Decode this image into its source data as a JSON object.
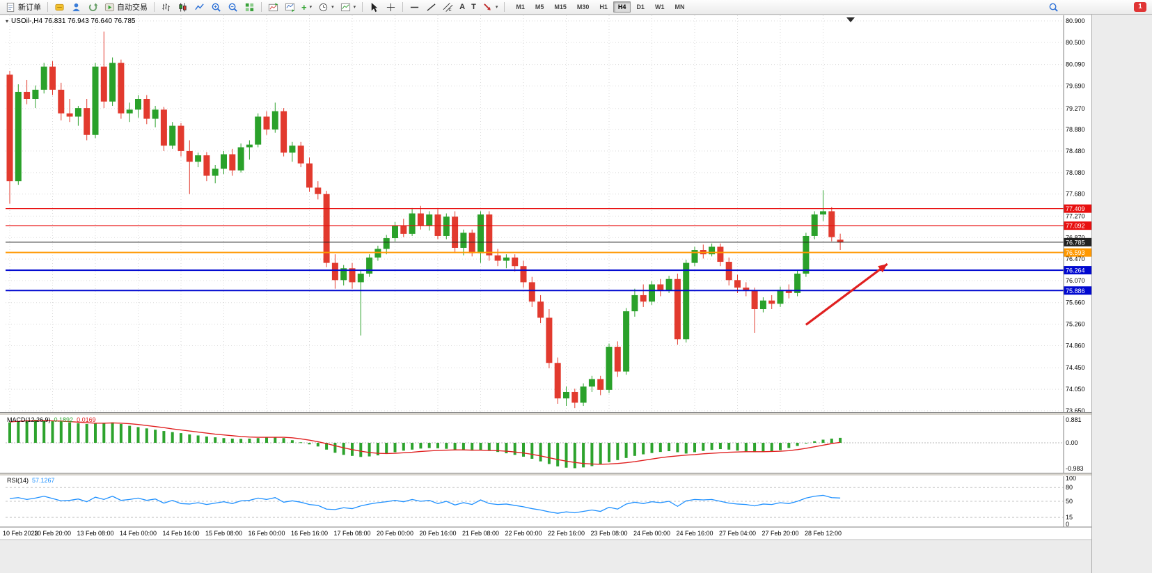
{
  "toolbar": {
    "new_order": "新订单",
    "auto_trading": "自动交易",
    "timeframes": [
      "M1",
      "M5",
      "M15",
      "M30",
      "H1",
      "H4",
      "D1",
      "W1",
      "MN"
    ],
    "active_timeframe": "H4",
    "badge": "1"
  },
  "chart": {
    "title": "USOil-,H4 76.831 76.943 76.640 76.785",
    "symbol": "USOil-",
    "period": "H4",
    "ohlc_current": {
      "open": "76.831",
      "high": "76.943",
      "low": "76.640",
      "close": "76.785"
    }
  },
  "macd": {
    "name": "MACD(12,26,9)",
    "value_main": "0.1892",
    "value_signal": "0.0169",
    "axis": [
      "0.881",
      "0.00",
      "-0.983"
    ]
  },
  "rsi": {
    "name": "RSI(14)",
    "value": "57.1267",
    "axis": [
      "100",
      "80",
      "50",
      "15",
      "0"
    ]
  },
  "chart_data": {
    "type": "candlestick",
    "title": "USOil- H4",
    "price_axis_ticks": [
      "80.900",
      "80.500",
      "80.090",
      "79.690",
      "79.270",
      "78.880",
      "78.480",
      "78.080",
      "77.680",
      "77.270",
      "76.870",
      "76.470",
      "76.070",
      "75.660",
      "75.260",
      "74.860",
      "74.450",
      "74.050",
      "73.650"
    ],
    "time_labels": [
      "10 Feb 2023",
      "10 Feb 20:00",
      "13 Feb 08:00",
      "14 Feb 00:00",
      "14 Feb 16:00",
      "15 Feb 08:00",
      "16 Feb 00:00",
      "16 Feb 16:00",
      "17 Feb 08:00",
      "20 Feb 00:00",
      "20 Feb 16:00",
      "21 Feb 08:00",
      "22 Feb 00:00",
      "22 Feb 16:00",
      "23 Feb 08:00",
      "24 Feb 00:00",
      "24 Feb 16:00",
      "27 Feb 04:00",
      "27 Feb 20:00",
      "28 Feb 12:00"
    ],
    "bars_per_label": 5,
    "ohlc": [
      [
        79.9,
        79.97,
        77.5,
        77.92
      ],
      [
        77.92,
        79.72,
        77.85,
        79.58
      ],
      [
        79.58,
        79.8,
        79.35,
        79.45
      ],
      [
        79.45,
        79.7,
        79.28,
        79.62
      ],
      [
        79.62,
        80.12,
        79.55,
        80.05
      ],
      [
        80.05,
        80.15,
        79.52,
        79.62
      ],
      [
        79.62,
        79.75,
        79.05,
        79.18
      ],
      [
        79.18,
        79.45,
        79.02,
        79.12
      ],
      [
        79.12,
        79.32,
        78.95,
        79.28
      ],
      [
        79.28,
        79.45,
        78.68,
        78.78
      ],
      [
        78.78,
        80.12,
        78.72,
        80.05
      ],
      [
        80.05,
        80.7,
        79.28,
        79.4
      ],
      [
        79.4,
        80.22,
        79.32,
        80.12
      ],
      [
        80.12,
        80.18,
        79.08,
        79.18
      ],
      [
        79.18,
        79.38,
        79.02,
        79.25
      ],
      [
        79.25,
        79.52,
        79.1,
        79.45
      ],
      [
        79.45,
        79.52,
        78.98,
        79.08
      ],
      [
        79.08,
        79.32,
        78.92,
        79.25
      ],
      [
        79.25,
        79.3,
        78.48,
        78.58
      ],
      [
        78.58,
        79.02,
        78.52,
        78.95
      ],
      [
        78.95,
        79.0,
        78.38,
        78.48
      ],
      [
        78.48,
        78.68,
        77.68,
        78.28
      ],
      [
        78.28,
        78.45,
        78.18,
        78.4
      ],
      [
        78.4,
        78.46,
        77.92,
        78.02
      ],
      [
        78.02,
        78.22,
        77.88,
        78.15
      ],
      [
        78.15,
        78.48,
        78.05,
        78.42
      ],
      [
        78.42,
        78.52,
        78.02,
        78.12
      ],
      [
        78.12,
        78.62,
        78.08,
        78.55
      ],
      [
        78.55,
        78.68,
        78.32,
        78.6
      ],
      [
        78.6,
        79.18,
        78.55,
        79.12
      ],
      [
        79.12,
        79.22,
        78.78,
        78.88
      ],
      [
        78.88,
        79.38,
        78.82,
        79.22
      ],
      [
        79.22,
        79.28,
        78.38,
        78.45
      ],
      [
        78.45,
        78.65,
        78.28,
        78.58
      ],
      [
        78.58,
        78.65,
        78.18,
        78.25
      ],
      [
        78.25,
        78.36,
        77.72,
        77.8
      ],
      [
        77.8,
        77.92,
        77.58,
        77.68
      ],
      [
        77.68,
        77.74,
        76.32,
        76.4
      ],
      [
        76.4,
        76.56,
        75.92,
        76.08
      ],
      [
        76.08,
        76.36,
        75.98,
        76.3
      ],
      [
        76.3,
        76.4,
        75.92,
        76.04
      ],
      [
        76.04,
        76.26,
        75.05,
        76.2
      ],
      [
        76.2,
        76.56,
        76.14,
        76.5
      ],
      [
        76.5,
        76.72,
        76.44,
        76.66
      ],
      [
        76.66,
        76.92,
        76.56,
        76.86
      ],
      [
        76.86,
        77.16,
        76.8,
        77.1
      ],
      [
        77.1,
        77.22,
        76.88,
        76.94
      ],
      [
        76.94,
        77.42,
        76.9,
        77.32
      ],
      [
        77.32,
        77.46,
        77.02,
        77.1
      ],
      [
        77.1,
        77.36,
        77.0,
        77.3
      ],
      [
        77.3,
        77.4,
        76.84,
        76.9
      ],
      [
        76.9,
        77.32,
        76.84,
        77.26
      ],
      [
        77.26,
        77.36,
        76.58,
        76.68
      ],
      [
        76.68,
        77.02,
        76.54,
        76.96
      ],
      [
        76.96,
        77.02,
        76.52,
        76.58
      ],
      [
        76.58,
        77.36,
        76.4,
        77.3
      ],
      [
        77.3,
        77.36,
        76.44,
        76.54
      ],
      [
        76.54,
        76.66,
        76.34,
        76.44
      ],
      [
        76.44,
        76.56,
        76.3,
        76.5
      ],
      [
        76.5,
        76.56,
        76.24,
        76.34
      ],
      [
        76.34,
        76.44,
        75.94,
        76.04
      ],
      [
        76.04,
        76.14,
        75.58,
        75.68
      ],
      [
        75.68,
        75.8,
        75.28,
        75.38
      ],
      [
        75.38,
        75.54,
        74.44,
        74.54
      ],
      [
        74.54,
        74.64,
        73.78,
        73.88
      ],
      [
        73.88,
        74.1,
        73.74,
        74.0
      ],
      [
        74.0,
        74.06,
        73.7,
        73.8
      ],
      [
        73.8,
        74.16,
        73.74,
        74.1
      ],
      [
        74.1,
        74.3,
        74.0,
        74.24
      ],
      [
        74.24,
        74.3,
        73.94,
        74.04
      ],
      [
        74.04,
        74.9,
        73.98,
        74.84
      ],
      [
        74.84,
        74.94,
        74.28,
        74.38
      ],
      [
        74.38,
        75.56,
        74.32,
        75.5
      ],
      [
        75.5,
        75.92,
        75.4,
        75.8
      ],
      [
        75.8,
        76.0,
        75.58,
        75.68
      ],
      [
        75.68,
        76.06,
        75.62,
        76.0
      ],
      [
        76.0,
        76.1,
        75.78,
        75.88
      ],
      [
        75.88,
        76.16,
        75.84,
        76.1
      ],
      [
        76.1,
        76.2,
        74.88,
        74.98
      ],
      [
        74.98,
        76.46,
        74.92,
        76.4
      ],
      [
        76.4,
        76.7,
        76.34,
        76.64
      ],
      [
        76.64,
        76.74,
        76.48,
        76.56
      ],
      [
        76.56,
        76.76,
        76.52,
        76.7
      ],
      [
        76.7,
        76.76,
        76.34,
        76.42
      ],
      [
        76.42,
        76.5,
        75.98,
        76.08
      ],
      [
        76.08,
        76.18,
        75.84,
        75.94
      ],
      [
        75.94,
        76.04,
        75.78,
        75.88
      ],
      [
        75.88,
        75.94,
        75.1,
        75.54
      ],
      [
        75.54,
        75.76,
        75.48,
        75.7
      ],
      [
        75.7,
        75.8,
        75.54,
        75.64
      ],
      [
        75.64,
        75.96,
        75.58,
        75.9
      ],
      [
        75.9,
        76.0,
        75.74,
        75.84
      ],
      [
        75.84,
        76.26,
        75.78,
        76.2
      ],
      [
        76.2,
        76.96,
        76.14,
        76.9
      ],
      [
        76.9,
        77.36,
        76.84,
        77.3
      ],
      [
        77.3,
        77.75,
        77.18,
        77.36
      ],
      [
        77.36,
        77.44,
        76.8,
        76.88
      ],
      [
        76.831,
        76.943,
        76.64,
        76.785
      ]
    ],
    "levels": [
      {
        "price": 77.409,
        "label": "77.409",
        "color": "#e81010",
        "width": 1.2
      },
      {
        "price": 77.092,
        "label": "77.092",
        "color": "#e81010",
        "width": 1.2
      },
      {
        "price": 76.785,
        "label": "76.785",
        "color": "#222222",
        "width": 1
      },
      {
        "price": 76.593,
        "label": "76.593",
        "color": "#ff9800",
        "width": 2
      },
      {
        "price": 76.264,
        "label": "76.264",
        "color": "#0008d0",
        "width": 2
      },
      {
        "price": 75.886,
        "label": "75.886",
        "color": "#0008d0",
        "width": 2
      }
    ],
    "arrow": {
      "from_bar": 93,
      "from_price": 75.25,
      "to_bar": 102.5,
      "to_price": 76.38,
      "color": "#e02020"
    },
    "macd": {
      "ylim": [
        -0.983,
        0.881
      ],
      "histogram": [
        0.78,
        0.82,
        0.86,
        0.88,
        0.86,
        0.83,
        0.8,
        0.78,
        0.75,
        0.72,
        0.73,
        0.76,
        0.78,
        0.72,
        0.65,
        0.6,
        0.55,
        0.5,
        0.45,
        0.41,
        0.37,
        0.32,
        0.28,
        0.24,
        0.21,
        0.18,
        0.16,
        0.15,
        0.16,
        0.18,
        0.2,
        0.22,
        0.18,
        0.1,
        0.02,
        -0.06,
        -0.14,
        -0.26,
        -0.38,
        -0.46,
        -0.5,
        -0.54,
        -0.52,
        -0.48,
        -0.42,
        -0.36,
        -0.3,
        -0.26,
        -0.22,
        -0.2,
        -0.21,
        -0.23,
        -0.26,
        -0.28,
        -0.3,
        -0.28,
        -0.31,
        -0.35,
        -0.4,
        -0.46,
        -0.53,
        -0.61,
        -0.71,
        -0.81,
        -0.9,
        -0.95,
        -0.97,
        -0.94,
        -0.89,
        -0.83,
        -0.74,
        -0.66,
        -0.58,
        -0.5,
        -0.44,
        -0.39,
        -0.35,
        -0.32,
        -0.36,
        -0.41,
        -0.36,
        -0.31,
        -0.27,
        -0.24,
        -0.26,
        -0.3,
        -0.33,
        -0.36,
        -0.35,
        -0.32,
        -0.28,
        -0.2,
        -0.12,
        -0.02,
        0.06,
        0.12,
        0.16,
        0.1892
      ],
      "signal": [
        0.8,
        0.82,
        0.84,
        0.85,
        0.85,
        0.84,
        0.83,
        0.81,
        0.79,
        0.77,
        0.75,
        0.75,
        0.76,
        0.75,
        0.73,
        0.7,
        0.66,
        0.62,
        0.58,
        0.53,
        0.49,
        0.45,
        0.41,
        0.37,
        0.33,
        0.3,
        0.27,
        0.24,
        0.22,
        0.21,
        0.21,
        0.21,
        0.21,
        0.19,
        0.15,
        0.1,
        0.04,
        -0.03,
        -0.11,
        -0.19,
        -0.26,
        -0.32,
        -0.37,
        -0.4,
        -0.41,
        -0.4,
        -0.38,
        -0.36,
        -0.33,
        -0.31,
        -0.29,
        -0.28,
        -0.27,
        -0.27,
        -0.28,
        -0.28,
        -0.29,
        -0.3,
        -0.32,
        -0.35,
        -0.39,
        -0.44,
        -0.5,
        -0.57,
        -0.64,
        -0.7,
        -0.75,
        -0.79,
        -0.81,
        -0.82,
        -0.81,
        -0.79,
        -0.76,
        -0.72,
        -0.67,
        -0.62,
        -0.57,
        -0.53,
        -0.5,
        -0.47,
        -0.45,
        -0.42,
        -0.4,
        -0.38,
        -0.36,
        -0.35,
        -0.34,
        -0.34,
        -0.34,
        -0.33,
        -0.32,
        -0.3,
        -0.26,
        -0.21,
        -0.15,
        -0.09,
        -0.03,
        0.0169
      ]
    },
    "rsi": {
      "ylim": [
        0,
        100
      ],
      "levels": [
        80,
        50,
        15
      ],
      "values": [
        56,
        58,
        54,
        57,
        61,
        56,
        51,
        52,
        55,
        49,
        59,
        54,
        61,
        52,
        54,
        57,
        52,
        55,
        46,
        52,
        45,
        44,
        47,
        43,
        46,
        49,
        45,
        51,
        52,
        57,
        54,
        58,
        48,
        51,
        48,
        43,
        41,
        33,
        32,
        36,
        34,
        40,
        44,
        47,
        49,
        52,
        49,
        54,
        50,
        52,
        45,
        50,
        42,
        47,
        43,
        53,
        45,
        43,
        44,
        41,
        38,
        34,
        31,
        27,
        24,
        27,
        25,
        28,
        31,
        28,
        37,
        33,
        44,
        48,
        45,
        49,
        47,
        50,
        39,
        51,
        54,
        53,
        54,
        50,
        46,
        44,
        43,
        40,
        44,
        43,
        47,
        45,
        50,
        57,
        61,
        63,
        58,
        57.1267
      ]
    },
    "colors": {
      "up": "#2aa12a",
      "down": "#e23a2e",
      "grid": "#d9d9d9",
      "macd_hist": "#2da32d",
      "macd_signal": "#e02020",
      "rsi_line": "#1e90ff",
      "axis_text": "#000000"
    }
  }
}
